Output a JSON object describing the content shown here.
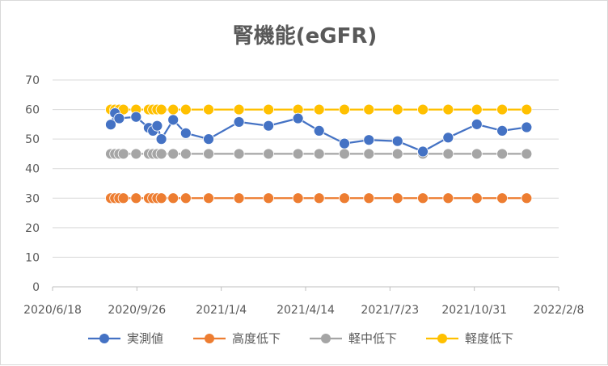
{
  "chart_data": {
    "type": "line",
    "title": "腎機能(eGFR)",
    "xlabel": "",
    "ylabel": "",
    "xlim": [
      "2020-06-18",
      "2022-02-08"
    ],
    "ylim": [
      0,
      70
    ],
    "y_ticks": [
      0,
      10,
      20,
      30,
      40,
      50,
      60,
      70
    ],
    "x_ticks": [
      "2020-06-18",
      "2020-09-26",
      "2021-01-04",
      "2021-04-14",
      "2021-07-23",
      "2021-10-31",
      "2022-02-08"
    ],
    "x_tick_labels": [
      "2020/6/18",
      "2020/9/26",
      "2021/1/4",
      "2021/4/14",
      "2021/7/23",
      "2021/10/31",
      "2022/2/8"
    ],
    "grid": "horizontal",
    "legend_position": "bottom",
    "series": [
      {
        "name": "実測値",
        "color": "#4472c4",
        "points": [
          [
            "2020-08-26",
            54.9
          ],
          [
            "2020-08-31",
            58.8
          ],
          [
            "2020-09-05",
            57.0
          ],
          [
            "2020-09-25",
            57.5
          ],
          [
            "2020-10-10",
            53.8
          ],
          [
            "2020-10-15",
            52.8
          ],
          [
            "2020-10-20",
            54.5
          ],
          [
            "2020-10-25",
            50.0
          ],
          [
            "2020-11-08",
            56.5
          ],
          [
            "2020-11-23",
            52.0
          ],
          [
            "2020-12-20",
            50.0
          ],
          [
            "2021-01-25",
            55.8
          ],
          [
            "2021-03-01",
            54.5
          ],
          [
            "2021-04-05",
            57.0
          ],
          [
            "2021-04-30",
            52.8
          ],
          [
            "2021-05-30",
            48.5
          ],
          [
            "2021-06-28",
            49.7
          ],
          [
            "2021-08-01",
            49.3
          ],
          [
            "2021-08-31",
            45.8
          ],
          [
            "2021-09-30",
            50.5
          ],
          [
            "2021-11-03",
            55.0
          ],
          [
            "2021-12-03",
            52.8
          ],
          [
            "2022-01-01",
            54.0
          ]
        ]
      },
      {
        "name": "高度低下",
        "color": "#ed7d31",
        "points": [
          [
            "2020-08-26",
            30
          ],
          [
            "2020-08-31",
            30
          ],
          [
            "2020-09-05",
            30
          ],
          [
            "2020-09-10",
            30
          ],
          [
            "2020-09-25",
            30
          ],
          [
            "2020-10-10",
            30
          ],
          [
            "2020-10-15",
            30
          ],
          [
            "2020-10-20",
            30
          ],
          [
            "2020-10-25",
            30
          ],
          [
            "2020-11-08",
            30
          ],
          [
            "2020-11-23",
            30
          ],
          [
            "2020-12-20",
            30
          ],
          [
            "2021-01-25",
            30
          ],
          [
            "2021-03-01",
            30
          ],
          [
            "2021-04-05",
            30
          ],
          [
            "2021-04-30",
            30
          ],
          [
            "2021-05-30",
            30
          ],
          [
            "2021-06-28",
            30
          ],
          [
            "2021-08-01",
            30
          ],
          [
            "2021-08-31",
            30
          ],
          [
            "2021-09-30",
            30
          ],
          [
            "2021-11-03",
            30
          ],
          [
            "2021-12-03",
            30
          ],
          [
            "2022-01-01",
            30
          ]
        ]
      },
      {
        "name": "軽中低下",
        "color": "#a5a5a5",
        "points": [
          [
            "2020-08-26",
            45
          ],
          [
            "2020-08-31",
            45
          ],
          [
            "2020-09-05",
            45
          ],
          [
            "2020-09-10",
            45
          ],
          [
            "2020-09-25",
            45
          ],
          [
            "2020-10-10",
            45
          ],
          [
            "2020-10-15",
            45
          ],
          [
            "2020-10-20",
            45
          ],
          [
            "2020-10-25",
            45
          ],
          [
            "2020-11-08",
            45
          ],
          [
            "2020-11-23",
            45
          ],
          [
            "2020-12-20",
            45
          ],
          [
            "2021-01-25",
            45
          ],
          [
            "2021-03-01",
            45
          ],
          [
            "2021-04-05",
            45
          ],
          [
            "2021-04-30",
            45
          ],
          [
            "2021-05-30",
            45
          ],
          [
            "2021-06-28",
            45
          ],
          [
            "2021-08-01",
            45
          ],
          [
            "2021-08-31",
            45
          ],
          [
            "2021-09-30",
            45
          ],
          [
            "2021-11-03",
            45
          ],
          [
            "2021-12-03",
            45
          ],
          [
            "2022-01-01",
            45
          ]
        ]
      },
      {
        "name": "軽度低下",
        "color": "#ffc000",
        "points": [
          [
            "2020-08-26",
            60
          ],
          [
            "2020-08-31",
            60
          ],
          [
            "2020-09-05",
            60
          ],
          [
            "2020-09-10",
            60
          ],
          [
            "2020-09-25",
            60
          ],
          [
            "2020-10-10",
            60
          ],
          [
            "2020-10-15",
            60
          ],
          [
            "2020-10-20",
            60
          ],
          [
            "2020-10-25",
            60
          ],
          [
            "2020-11-08",
            60
          ],
          [
            "2020-11-23",
            60
          ],
          [
            "2020-12-20",
            60
          ],
          [
            "2021-01-25",
            60
          ],
          [
            "2021-03-01",
            60
          ],
          [
            "2021-04-05",
            60
          ],
          [
            "2021-04-30",
            60
          ],
          [
            "2021-05-30",
            60
          ],
          [
            "2021-06-28",
            60
          ],
          [
            "2021-08-01",
            60
          ],
          [
            "2021-08-31",
            60
          ],
          [
            "2021-09-30",
            60
          ],
          [
            "2021-11-03",
            60
          ],
          [
            "2021-12-03",
            60
          ],
          [
            "2022-01-01",
            60
          ]
        ]
      }
    ]
  }
}
